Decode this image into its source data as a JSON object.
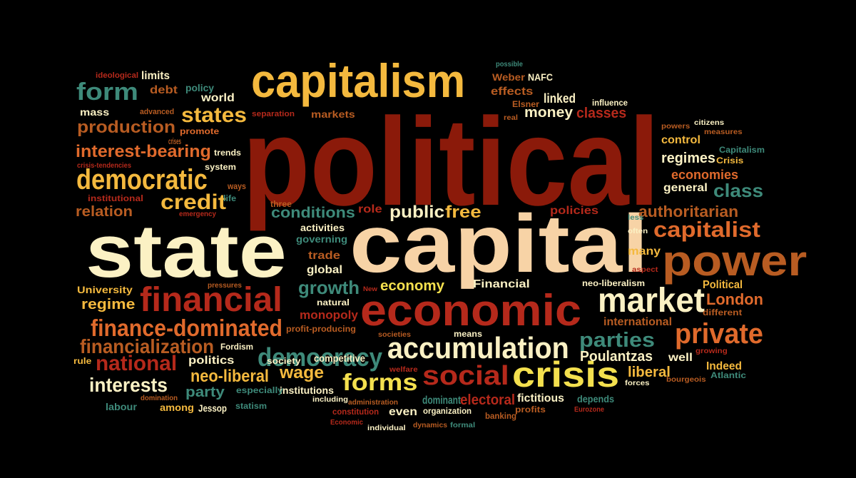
{
  "palette": {
    "background": "#000000",
    "dark_red": "#8b1a0a",
    "red": "#b5291b",
    "orange": "#e06a2c",
    "brown": "#b85c22",
    "gold": "#f4b93e",
    "teal": "#3e8a7a",
    "cream": "#fbf1c4",
    "peach": "#f7d3a6",
    "white": "#ffffff"
  },
  "words": [
    {
      "text": "political",
      "color": "#8b1a0a"
    },
    {
      "text": "state",
      "color": "#fbf1c4"
    },
    {
      "text": "capital",
      "color": "#f7d3a6"
    },
    {
      "text": "capitalism",
      "color": "#f4b93e"
    },
    {
      "text": "economic",
      "color": "#b5291b"
    },
    {
      "text": "power",
      "color": "#b85c22"
    },
    {
      "text": "financial",
      "color": "#b5291b"
    },
    {
      "text": "market",
      "color": "#fbf1c4"
    },
    {
      "text": "crisis",
      "color": "#f4e04e"
    },
    {
      "text": "accumulation",
      "color": "#fbf1c4"
    },
    {
      "text": "private",
      "color": "#e06a2c"
    },
    {
      "text": "democratic",
      "color": "#f4b93e"
    },
    {
      "text": "social",
      "color": "#b5291b"
    },
    {
      "text": "democracy",
      "color": "#3e8a7a"
    },
    {
      "text": "finance-dominated",
      "color": "#e06a2c"
    },
    {
      "text": "forms",
      "color": "#f4e04e"
    },
    {
      "text": "capitalist",
      "color": "#e06a2c"
    },
    {
      "text": "states",
      "color": "#f4b93e"
    },
    {
      "text": "form",
      "color": "#3e8a7a"
    },
    {
      "text": "credit",
      "color": "#f4b93e"
    },
    {
      "text": "national",
      "color": "#b5291b"
    },
    {
      "text": "financialization",
      "color": "#b85c22"
    },
    {
      "text": "production",
      "color": "#b85c22"
    },
    {
      "text": "parties",
      "color": "#3e8a7a"
    },
    {
      "text": "class",
      "color": "#3e8a7a"
    },
    {
      "text": "interests",
      "color": "#fbf1c4"
    },
    {
      "text": "interest-bearing",
      "color": "#e06a2c"
    },
    {
      "text": "public",
      "color": "#fbf1c4"
    },
    {
      "text": "free",
      "color": "#f4b93e"
    },
    {
      "text": "authoritarian",
      "color": "#b85c22"
    },
    {
      "text": "growth",
      "color": "#3e8a7a"
    },
    {
      "text": "conditions",
      "color": "#3e8a7a"
    },
    {
      "text": "wage",
      "color": "#f4b93e"
    },
    {
      "text": "relation",
      "color": "#b85c22"
    },
    {
      "text": "regime",
      "color": "#f4b93e"
    },
    {
      "text": "money",
      "color": "#fbf1c4"
    },
    {
      "text": "London",
      "color": "#e06a2c"
    },
    {
      "text": "economy",
      "color": "#f4e04e"
    },
    {
      "text": "neo-liberal",
      "color": "#f4b93e"
    },
    {
      "text": "liberal",
      "color": "#f4b93e"
    },
    {
      "text": "party",
      "color": "#3e8a7a"
    },
    {
      "text": "classes",
      "color": "#b5291b"
    },
    {
      "text": "effects",
      "color": "#b85c22"
    },
    {
      "text": "debt",
      "color": "#b85c22"
    },
    {
      "text": "regimes",
      "color": "#fbf1c4"
    },
    {
      "text": "economies",
      "color": "#e06a2c"
    },
    {
      "text": "Poulantzas",
      "color": "#fbf1c4"
    },
    {
      "text": "electoral",
      "color": "#b5291b"
    },
    {
      "text": "Financial",
      "color": "#fbf1c4"
    },
    {
      "text": "policies",
      "color": "#b5291b"
    },
    {
      "text": "role",
      "color": "#b5291b"
    },
    {
      "text": "monopoly",
      "color": "#b5291b"
    },
    {
      "text": "global",
      "color": "#fbf1c4"
    },
    {
      "text": "trade",
      "color": "#b85c22"
    },
    {
      "text": "politics",
      "color": "#fbf1c4"
    },
    {
      "text": "control",
      "color": "#f4b93e"
    },
    {
      "text": "international",
      "color": "#b85c22"
    },
    {
      "text": "linked",
      "color": "#fbf1c4"
    },
    {
      "text": "University",
      "color": "#f4b93e"
    },
    {
      "text": "many",
      "color": "#f4b93e"
    },
    {
      "text": "even",
      "color": "#fbf1c4"
    },
    {
      "text": "well",
      "color": "#fbf1c4"
    },
    {
      "text": "Indeed",
      "color": "#f4b93e"
    },
    {
      "text": "Political",
      "color": "#f4b93e"
    },
    {
      "text": "general",
      "color": "#fbf1c4"
    },
    {
      "text": "fictitious",
      "color": "#fbf1c4"
    },
    {
      "text": "world",
      "color": "#fbf1c4"
    },
    {
      "text": "limits",
      "color": "#fbf1c4"
    },
    {
      "text": "policy",
      "color": "#3e8a7a"
    },
    {
      "text": "mass",
      "color": "#fbf1c4"
    },
    {
      "text": "markets",
      "color": "#b85c22"
    },
    {
      "text": "promote",
      "color": "#e06a2c"
    },
    {
      "text": "among",
      "color": "#f4b93e"
    },
    {
      "text": "dominant",
      "color": "#3e8a7a"
    },
    {
      "text": "institutions",
      "color": "#fbf1c4"
    },
    {
      "text": "labour",
      "color": "#3e8a7a"
    },
    {
      "text": "Jessop",
      "color": "#fbf1c4"
    },
    {
      "text": "competitive",
      "color": "#fbf1c4"
    },
    {
      "text": "society",
      "color": "#fbf1c4"
    },
    {
      "text": "Fordism",
      "color": "#fbf1c4"
    },
    {
      "text": "natural",
      "color": "#fbf1c4"
    },
    {
      "text": "activities",
      "color": "#fbf1c4"
    },
    {
      "text": "governing",
      "color": "#3e8a7a"
    },
    {
      "text": "different",
      "color": "#b85c22"
    },
    {
      "text": "depends",
      "color": "#3e8a7a"
    },
    {
      "text": "profits",
      "color": "#b85c22"
    },
    {
      "text": "banking",
      "color": "#b85c22"
    },
    {
      "text": "organization",
      "color": "#fbf1c4"
    },
    {
      "text": "constitution",
      "color": "#b5291b"
    },
    {
      "text": "means",
      "color": "#fbf1c4"
    },
    {
      "text": "statism",
      "color": "#3e8a7a"
    },
    {
      "text": "especially",
      "color": "#3e8a7a"
    },
    {
      "text": "rule",
      "color": "#f4b93e"
    },
    {
      "text": "system",
      "color": "#fbf1c4"
    },
    {
      "text": "trends",
      "color": "#fbf1c4"
    },
    {
      "text": "three",
      "color": "#b85c22"
    },
    {
      "text": "life",
      "color": "#3e8a7a"
    },
    {
      "text": "ways",
      "color": "#b85c22"
    },
    {
      "text": "NAFC",
      "color": "#fbf1c4"
    },
    {
      "text": "Weber",
      "color": "#b85c22"
    },
    {
      "text": "possible",
      "color": "#3e8a7a"
    },
    {
      "text": "influence",
      "color": "#fbf1c4"
    },
    {
      "text": "Elsner",
      "color": "#b85c22"
    },
    {
      "text": "real",
      "color": "#b85c22"
    },
    {
      "text": "ideological",
      "color": "#b5291b"
    },
    {
      "text": "advanced",
      "color": "#b85c22"
    },
    {
      "text": "separation",
      "color": "#b5291b"
    },
    {
      "text": "crises",
      "color": "#b85c22"
    },
    {
      "text": "crisis-tendencies",
      "color": "#b5291b"
    },
    {
      "text": "institutional",
      "color": "#b5291b"
    },
    {
      "text": "emergency",
      "color": "#b5291b"
    },
    {
      "text": "pressures",
      "color": "#b85c22"
    },
    {
      "text": "profit-producing",
      "color": "#b85c22"
    },
    {
      "text": "New",
      "color": "#b5291b"
    },
    {
      "text": "societies",
      "color": "#b85c22"
    },
    {
      "text": "welfare",
      "color": "#b5291b"
    },
    {
      "text": "including",
      "color": "#fbf1c4"
    },
    {
      "text": "administration",
      "color": "#b85c22"
    },
    {
      "text": "Economic",
      "color": "#b5291b"
    },
    {
      "text": "individual",
      "color": "#fbf1c4"
    },
    {
      "text": "dynamics",
      "color": "#b85c22"
    },
    {
      "text": "formal",
      "color": "#3e8a7a"
    },
    {
      "text": "domination",
      "color": "#b85c22"
    },
    {
      "text": "Eurozone",
      "color": "#b5291b"
    },
    {
      "text": "forces",
      "color": "#fbf1c4"
    },
    {
      "text": "bourgeois",
      "color": "#b85c22"
    },
    {
      "text": "Atlantic",
      "color": "#3e8a7a"
    },
    {
      "text": "growing",
      "color": "#b5291b"
    },
    {
      "text": "neo-liberalism",
      "color": "#fbf1c4"
    },
    {
      "text": "aspect",
      "color": "#b5291b"
    },
    {
      "text": "often",
      "color": "#fbf1c4"
    },
    {
      "text": "less",
      "color": "#3e8a7a"
    },
    {
      "text": "Capitalism",
      "color": "#3e8a7a"
    },
    {
      "text": "Crisis",
      "color": "#f4b93e"
    },
    {
      "text": "measures",
      "color": "#b85c22"
    },
    {
      "text": "citizens",
      "color": "#fbf1c4"
    },
    {
      "text": "powers",
      "color": "#b85c22"
    }
  ]
}
